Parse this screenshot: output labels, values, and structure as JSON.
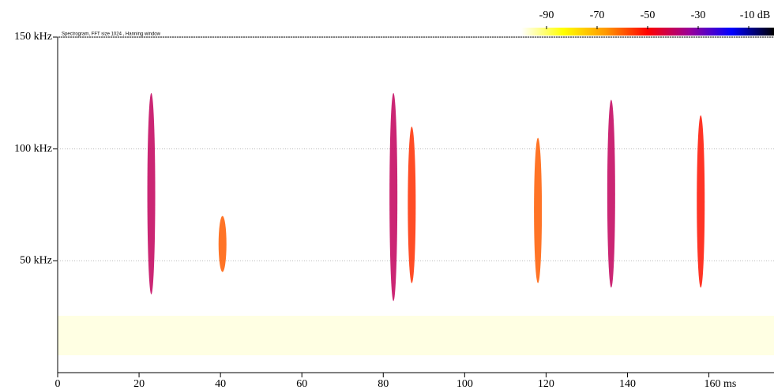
{
  "chart_data": {
    "type": "spectrogram",
    "title": "Spectrogram, FFT size 1024 , Hanning window",
    "x": [
      23,
      40.5,
      82.5,
      87,
      118,
      136,
      158
    ],
    "low": [
      35,
      45,
      32,
      40,
      40,
      38,
      38
    ],
    "high": [
      125,
      70,
      125,
      110,
      105,
      122,
      115
    ],
    "values": [
      -40,
      -60,
      -40,
      -55,
      -60,
      -40,
      -52
    ],
    "xlim": [
      0,
      176
    ],
    "xticks": [
      0,
      20,
      40,
      60,
      80,
      100,
      120,
      140,
      {
        "value": 160,
        "label": "160 ms"
      }
    ],
    "ylim": [
      0,
      150
    ],
    "yticks": [
      {
        "value": 50,
        "label": "50 kHz"
      },
      {
        "value": 100,
        "label": "100 kHz"
      },
      {
        "value": 150,
        "label": "150 kHz"
      }
    ],
    "colorlim": [
      -100,
      0
    ],
    "colorticks": [
      -90,
      -70,
      -50,
      -30,
      {
        "value": -10,
        "label": "-10 dB"
      }
    ],
    "colors": [
      "#ffffff",
      "#ffff00",
      "#ff9900",
      "#ff0000",
      "#990099",
      "#0000ff",
      "#000000"
    ],
    "grid": true
  }
}
